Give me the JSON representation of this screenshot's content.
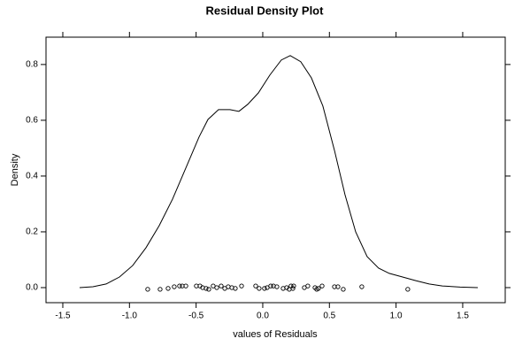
{
  "chart_data": {
    "type": "line",
    "title": "Residual Density Plot",
    "x_label": "values of Residuals",
    "y_label": "Density",
    "xlim": [
      -1.626,
      1.819
    ],
    "ylim": [
      -0.054,
      0.898
    ],
    "xticks": [
      -1.5,
      {
        "value": -1.0,
        "label": "-1.0"
      },
      -0.5,
      {
        "value": 0,
        "label": "0.0"
      },
      0.5,
      {
        "value": 1.0,
        "label": "1.0"
      },
      1.5
    ],
    "yticks": [
      {
        "value": 0,
        "label": "0.0"
      },
      0.2,
      0.4,
      0.6,
      0.8
    ],
    "series": [
      {
        "type": "line",
        "color": "#000000",
        "x": [
          -1.374,
          -1.274,
          -1.175,
          -1.075,
          -0.976,
          -0.876,
          -0.777,
          -0.677,
          -0.577,
          -0.478,
          -0.411,
          -0.332,
          -0.246,
          -0.179,
          -0.113,
          -0.033,
          0.053,
          0.139,
          0.206,
          0.285,
          0.365,
          0.451,
          0.538,
          0.617,
          0.697,
          0.783,
          0.869,
          0.949,
          1.049,
          1.148,
          1.248,
          1.347,
          1.48,
          1.613
        ],
        "values": [
          0.0,
          0.003,
          0.013,
          0.038,
          0.079,
          0.143,
          0.222,
          0.317,
          0.429,
          0.54,
          0.603,
          0.638,
          0.638,
          0.632,
          0.657,
          0.698,
          0.762,
          0.816,
          0.832,
          0.81,
          0.752,
          0.651,
          0.492,
          0.333,
          0.2,
          0.111,
          0.07,
          0.051,
          0.038,
          0.025,
          0.013,
          0.006,
          0.002,
          0.0
        ]
      },
      {
        "type": "scatter",
        "color": "#000000",
        "x": [
          -0.863,
          -0.77,
          -0.71,
          -0.664,
          -0.624,
          -0.604,
          -0.577,
          -0.498,
          -0.471,
          -0.451,
          -0.425,
          -0.405,
          -0.372,
          -0.345,
          -0.312,
          -0.285,
          -0.259,
          -0.232,
          -0.206,
          -0.159,
          -0.053,
          -0.027,
          0.013,
          0.033,
          0.06,
          0.08,
          0.106,
          0.153,
          0.179,
          0.199,
          0.212,
          0.226,
          0.232,
          0.312,
          0.338,
          0.392,
          0.405,
          0.418,
          0.445,
          0.538,
          0.564,
          0.604,
          0.743,
          1.088
        ],
        "values": [
          -0.006,
          -0.006,
          -0.003,
          0.003,
          0.006,
          0.006,
          0.006,
          0.006,
          0.006,
          0,
          -0.003,
          -0.006,
          0.006,
          0,
          0.006,
          -0.003,
          0.003,
          0,
          -0.003,
          0.006,
          0.006,
          -0.003,
          -0.003,
          0,
          0.006,
          0.006,
          0.003,
          -0.003,
          0,
          -0.006,
          0.006,
          -0.003,
          0.006,
          0,
          0.006,
          0,
          -0.006,
          -0.003,
          0.006,
          0.003,
          0.003,
          -0.006,
          0.003,
          -0.006
        ]
      }
    ]
  }
}
